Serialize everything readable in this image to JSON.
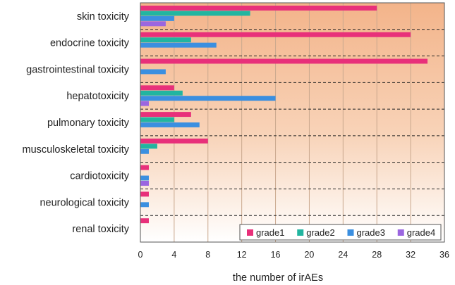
{
  "chart_data": {
    "type": "bar",
    "orientation": "horizontal",
    "categories": [
      "skin toxicity",
      "endocrine toxicity",
      "gastrointestinal toxicity",
      "hepatotoxicity",
      "pulmonary toxicity",
      "musculoskeletal toxicity",
      "cardiotoxicity",
      "neurological toxicity",
      "renal toxicity"
    ],
    "series": [
      {
        "name": "grade1",
        "color": "#e8307a",
        "values": [
          28,
          32,
          34,
          4,
          6,
          8,
          1,
          1,
          1
        ]
      },
      {
        "name": "grade2",
        "color": "#22b5a0",
        "values": [
          13,
          6,
          0,
          5,
          4,
          2,
          0,
          0,
          0
        ]
      },
      {
        "name": "grade3",
        "color": "#3b8fe0",
        "values": [
          4,
          9,
          3,
          16,
          7,
          1,
          1,
          1,
          0
        ]
      },
      {
        "name": "grade4",
        "color": "#9b66e0",
        "values": [
          3,
          0,
          0,
          1,
          0,
          0,
          1,
          0,
          0
        ]
      }
    ],
    "xlabel": "the number of irAEs",
    "xlim": [
      0,
      36
    ],
    "xticks": [
      0,
      4,
      8,
      12,
      16,
      20,
      24,
      28,
      32,
      36
    ],
    "grid": "vertical",
    "legend_position": "bottom-right"
  }
}
